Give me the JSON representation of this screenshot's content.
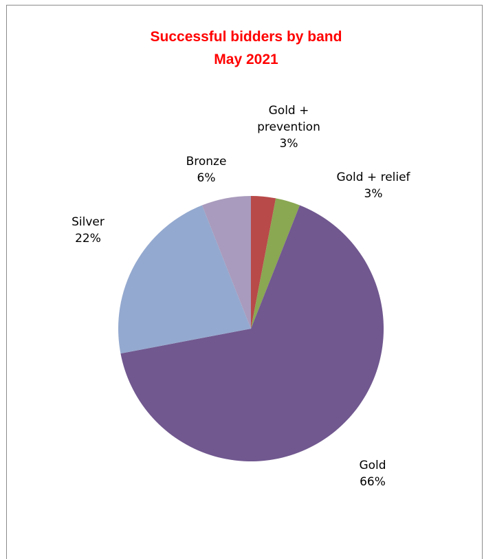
{
  "chart_data": {
    "type": "pie",
    "title": [
      "Successful bidders by band",
      "May 2021"
    ],
    "title_color": "#ff0000",
    "slices": [
      {
        "label": [
          "Gold +",
          "prevention"
        ],
        "percent_label": "3%",
        "value": 3,
        "color": "#b84a49"
      },
      {
        "label": [
          "Gold + relief"
        ],
        "percent_label": "3%",
        "value": 3,
        "color": "#8aa752"
      },
      {
        "label": [
          "Gold"
        ],
        "percent_label": "66%",
        "value": 66,
        "color": "#71588f"
      },
      {
        "label": [
          "Silver"
        ],
        "percent_label": "22%",
        "value": 22,
        "color": "#94a9cf"
      },
      {
        "label": [
          "Bronze"
        ],
        "percent_label": "6%",
        "value": 6,
        "color": "#a99bbd"
      }
    ],
    "start_angle_deg": 0,
    "direction": "clockwise",
    "legend": "none",
    "data_labels": "outside"
  }
}
